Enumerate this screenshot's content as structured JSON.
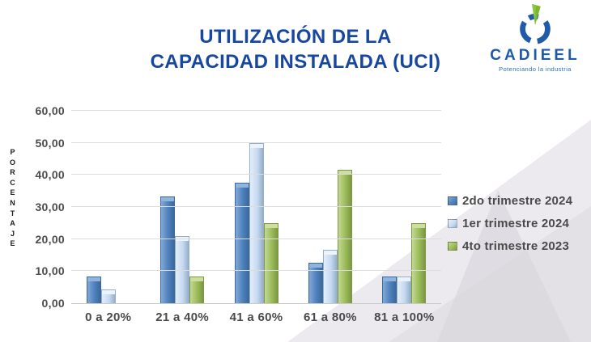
{
  "title": {
    "line1": "UTILIZACIÓN DE LA",
    "line2": "CAPACIDAD INSTALADA (UCI)",
    "color": "#17479e"
  },
  "logo": {
    "name": "CADIEEL",
    "tagline": "Potenciando la industria",
    "brand_blue": "#1d5aa7",
    "brand_green": "#79b829"
  },
  "chart_data": {
    "type": "bar",
    "title": "UTILIZACIÓN DE LA CAPACIDAD INSTALADA (UCI)",
    "categories": [
      "0 a 20%",
      "21 a 40%",
      "41 a 60%",
      "61 a 80%",
      "81 a 100%"
    ],
    "series": [
      {
        "name": "2do trimestre 2024",
        "values": [
          8.33,
          33.33,
          37.5,
          12.5,
          8.33
        ],
        "color": "#4f81bd",
        "color_light": "#81a9d6",
        "color_dark": "#3c699c",
        "color_top": "#8fb4dd"
      },
      {
        "name": "1er trimestre 2024",
        "values": [
          4.17,
          20.83,
          50.0,
          16.67,
          8.33
        ],
        "color": "#c6d9f1",
        "color_light": "#e4eef9",
        "color_dark": "#95afc9",
        "color_top": "#ecf3fb"
      },
      {
        "name": "4to trimestre 2023",
        "values": [
          0,
          8.33,
          25.0,
          41.67,
          25.0
        ],
        "color": "#9bbb59",
        "color_light": "#c3d893",
        "color_dark": "#7c9844",
        "color_top": "#cede9f"
      }
    ],
    "xlabel": "",
    "ylabel": "PORCENTAJE",
    "ylim": [
      0,
      60
    ],
    "ytick_step": 10,
    "ytick_labels": [
      "0,00",
      "10,00",
      "20,00",
      "30,00",
      "40,00",
      "50,00",
      "60,00"
    ],
    "grid": true,
    "legend_position": "right"
  }
}
